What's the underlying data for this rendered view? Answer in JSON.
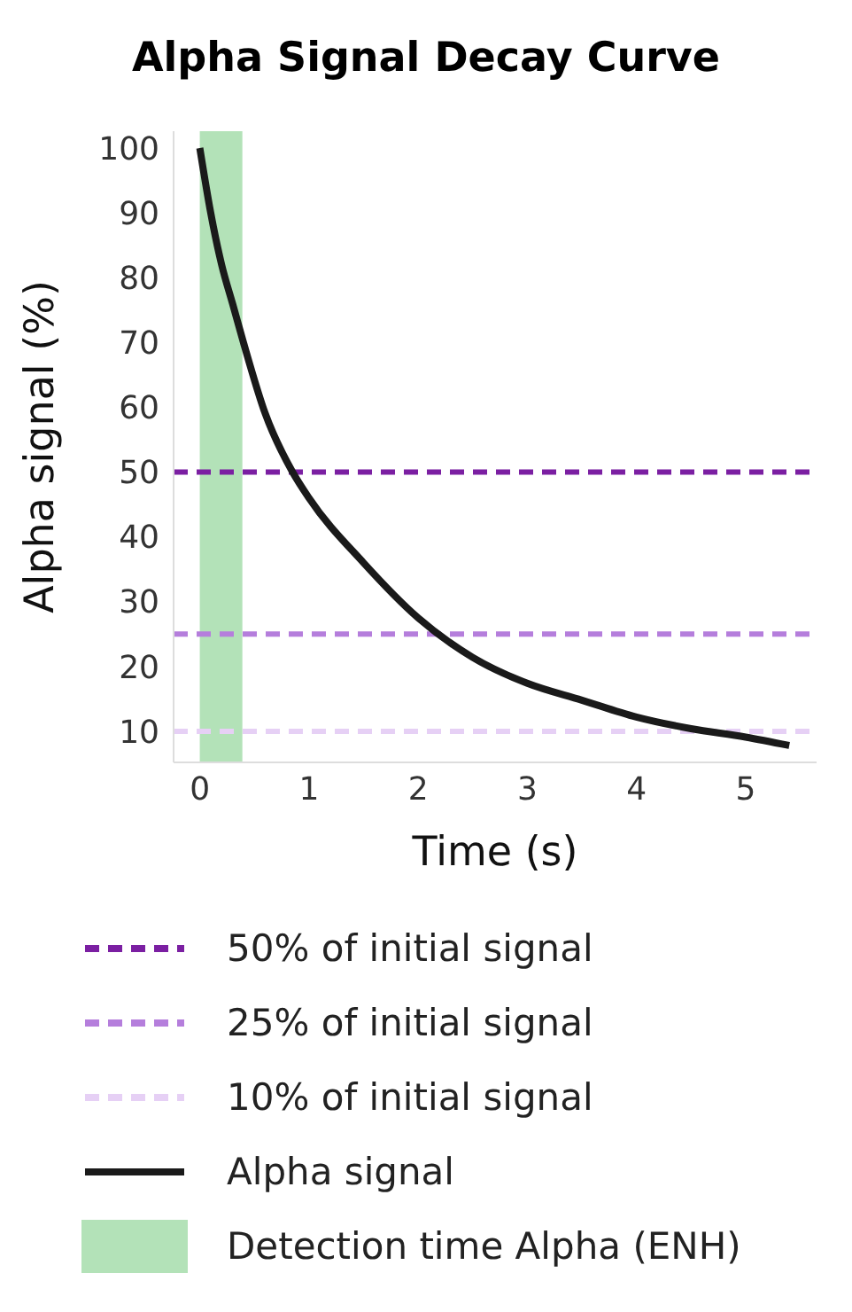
{
  "chart_data": {
    "type": "line",
    "title": "Alpha Signal Decay Curve",
    "xlabel": "Time (s)",
    "ylabel": "Alpha signal (%)",
    "x": [
      0,
      0.1,
      0.2,
      0.3,
      0.4,
      0.6,
      0.85,
      1,
      1.5,
      2,
      2.5,
      3,
      3.5,
      4,
      4.5,
      5,
      5.4
    ],
    "series": [
      {
        "name": "Alpha signal",
        "color": "#1a1a1a",
        "values": [
          100,
          90,
          82,
          76,
          70,
          59,
          50,
          46,
          36,
          27.5,
          21.4,
          17.4,
          14.8,
          12.2,
          10.4,
          9.1,
          7.8
        ]
      }
    ],
    "xlim": [
      -0.24,
      5.65
    ],
    "xticks": [
      0,
      1,
      2,
      3,
      4,
      5
    ],
    "ylim": [
      5.2,
      102.6
    ],
    "yticks": [
      10,
      20,
      30,
      40,
      50,
      60,
      70,
      80,
      90,
      100
    ],
    "ref_lines": [
      {
        "axis": "y",
        "value": 50,
        "label": "50% of initial signal",
        "color": "#7b1fa2",
        "line_style": "dashed"
      },
      {
        "axis": "y",
        "value": 25,
        "label": "25% of initial signal",
        "color": "#b57edc",
        "line_style": "dashed"
      },
      {
        "axis": "y",
        "value": 10,
        "label": "10% of initial signal",
        "color": "#e6d0f5",
        "line_style": "dashed"
      }
    ],
    "bands": [
      {
        "axis": "x",
        "from": 0,
        "to": 0.39,
        "label": "Detection time Alpha (ENH)",
        "color": "#b3e2b8"
      }
    ],
    "legend": "bottom",
    "marker": "none",
    "line_style": "solid"
  }
}
